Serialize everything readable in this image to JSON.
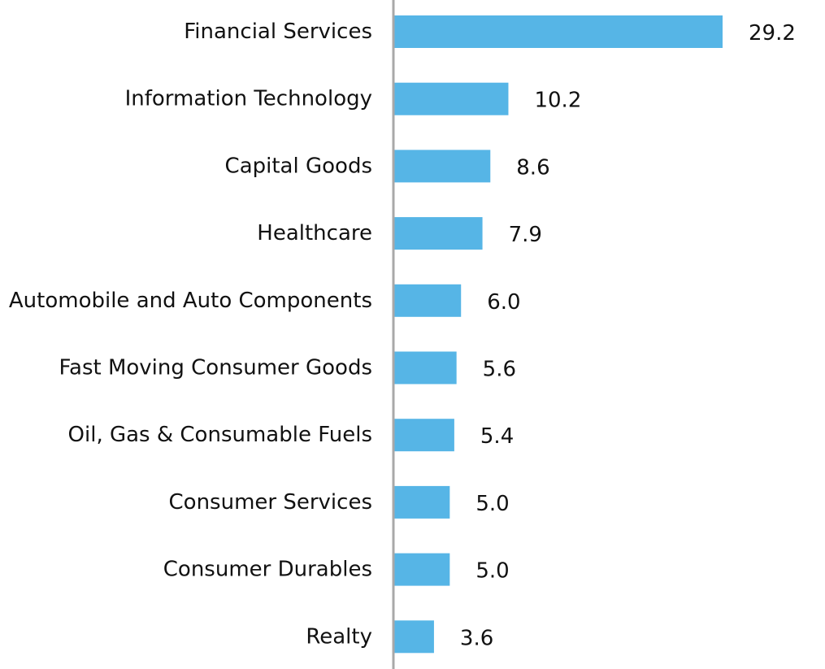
{
  "chart_data": {
    "type": "bar",
    "orientation": "horizontal",
    "categories": [
      "Financial Services",
      "Information Technology",
      "Capital Goods",
      "Healthcare",
      "Automobile and Auto Components",
      "Fast Moving Consumer Goods",
      "Oil, Gas & Consumable Fuels",
      "Consumer Services",
      "Consumer Durables",
      "Realty"
    ],
    "values": [
      29.2,
      10.2,
      8.6,
      7.9,
      6.0,
      5.6,
      5.4,
      5.0,
      5.0,
      3.6
    ],
    "value_labels": [
      "29.2",
      "10.2",
      "8.6",
      "7.9",
      "6.0",
      "5.6",
      "5.4",
      "5.0",
      "5.0",
      "3.6"
    ],
    "title": "",
    "xlabel": "",
    "ylabel": "",
    "xlim": [
      0,
      29.2
    ],
    "grid": false,
    "legend": "none",
    "colors": {
      "bar": "#56b5e6",
      "axis": "#a8a8a8",
      "text": "#111111"
    }
  }
}
